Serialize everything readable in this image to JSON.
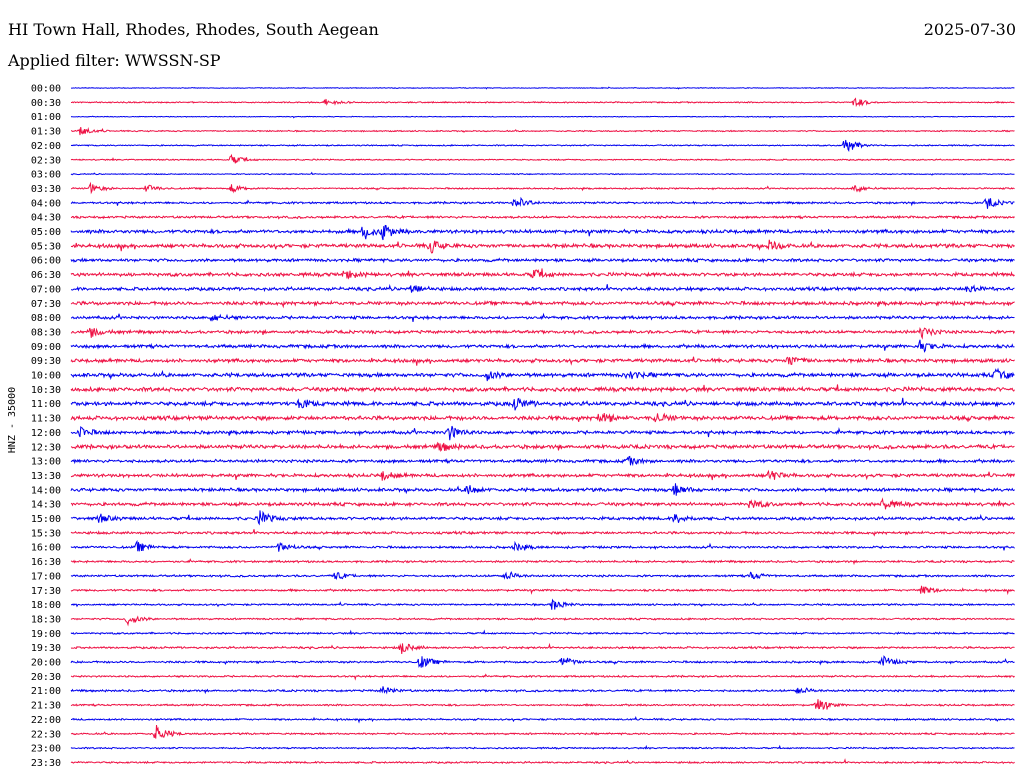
{
  "header": {
    "station": "HI Town Hall, Rhodes, Rhodes, South Aegean",
    "date": "2025-07-30",
    "filter": "Applied filter: WWSSN-SP"
  },
  "chart_data": {
    "type": "line",
    "ylabel": "HNZ - 35000",
    "row_labels": [
      "00:00",
      "00:30",
      "01:00",
      "01:30",
      "02:00",
      "02:30",
      "03:00",
      "03:30",
      "04:00",
      "04:30",
      "05:00",
      "05:30",
      "06:00",
      "06:30",
      "07:00",
      "07:30",
      "08:00",
      "08:30",
      "09:00",
      "09:30",
      "10:00",
      "10:30",
      "11:00",
      "11:30",
      "12:00",
      "12:30",
      "13:00",
      "13:30",
      "14:00",
      "14:30",
      "15:00",
      "15:30",
      "16:00",
      "16:30",
      "17:00",
      "17:30",
      "18:00",
      "18:30",
      "19:00",
      "19:30",
      "20:00",
      "20:30",
      "21:00",
      "21:30",
      "22:00",
      "22:30",
      "23:00",
      "23:30"
    ],
    "trace_colors": [
      "#0000ee",
      "#ee1144"
    ],
    "noise_level": [
      0.3,
      0.5,
      0.3,
      0.5,
      0.5,
      0.5,
      0.4,
      0.6,
      0.8,
      0.9,
      1.4,
      1.5,
      1.2,
      1.4,
      1.3,
      1.4,
      1.2,
      1.2,
      1.3,
      1.4,
      1.5,
      1.6,
      1.6,
      1.6,
      1.3,
      1.5,
      1.2,
      1.3,
      1.3,
      1.3,
      1.2,
      1.0,
      0.9,
      0.8,
      0.8,
      0.8,
      0.7,
      0.7,
      0.7,
      0.8,
      0.8,
      0.7,
      0.8,
      0.7,
      0.7,
      0.7,
      0.6,
      0.7
    ],
    "events": [
      {
        "row": 1,
        "x": 0.27,
        "a": 4
      },
      {
        "row": 1,
        "x": 0.83,
        "a": 5
      },
      {
        "row": 3,
        "x": 0.01,
        "a": 5
      },
      {
        "row": 4,
        "x": 0.82,
        "a": 9
      },
      {
        "row": 5,
        "x": 0.17,
        "a": 5
      },
      {
        "row": 7,
        "x": 0.02,
        "a": 5
      },
      {
        "row": 7,
        "x": 0.08,
        "a": 4
      },
      {
        "row": 7,
        "x": 0.17,
        "a": 4
      },
      {
        "row": 7,
        "x": 0.83,
        "a": 4
      },
      {
        "row": 8,
        "x": 0.47,
        "a": 8
      },
      {
        "row": 8,
        "x": 0.97,
        "a": 6
      },
      {
        "row": 10,
        "x": 0.31,
        "a": 8
      },
      {
        "row": 10,
        "x": 0.33,
        "a": 7
      },
      {
        "row": 11,
        "x": 0.38,
        "a": 7
      },
      {
        "row": 11,
        "x": 0.74,
        "a": 5
      },
      {
        "row": 13,
        "x": 0.29,
        "a": 5
      },
      {
        "row": 13,
        "x": 0.49,
        "a": 5
      },
      {
        "row": 14,
        "x": 0.36,
        "a": 5
      },
      {
        "row": 14,
        "x": 0.95,
        "a": 5
      },
      {
        "row": 16,
        "x": 0.15,
        "a": 4
      },
      {
        "row": 17,
        "x": 0.02,
        "a": 5
      },
      {
        "row": 17,
        "x": 0.9,
        "a": 6
      },
      {
        "row": 18,
        "x": 0.9,
        "a": 6
      },
      {
        "row": 19,
        "x": 0.76,
        "a": 5
      },
      {
        "row": 20,
        "x": 0.44,
        "a": 5
      },
      {
        "row": 20,
        "x": 0.59,
        "a": 5
      },
      {
        "row": 20,
        "x": 0.98,
        "a": 6
      },
      {
        "row": 22,
        "x": 0.24,
        "a": 5
      },
      {
        "row": 22,
        "x": 0.47,
        "a": 6
      },
      {
        "row": 23,
        "x": 0.56,
        "a": 6
      },
      {
        "row": 23,
        "x": 0.62,
        "a": 5
      },
      {
        "row": 24,
        "x": 0.01,
        "a": 5
      },
      {
        "row": 24,
        "x": 0.4,
        "a": 8
      },
      {
        "row": 25,
        "x": 0.39,
        "a": 5
      },
      {
        "row": 26,
        "x": 0.59,
        "a": 4
      },
      {
        "row": 27,
        "x": 0.33,
        "a": 5
      },
      {
        "row": 27,
        "x": 0.74,
        "a": 6
      },
      {
        "row": 28,
        "x": 0.42,
        "a": 5
      },
      {
        "row": 28,
        "x": 0.64,
        "a": 6
      },
      {
        "row": 29,
        "x": 0.72,
        "a": 5
      },
      {
        "row": 29,
        "x": 0.86,
        "a": 6
      },
      {
        "row": 30,
        "x": 0.03,
        "a": 4
      },
      {
        "row": 30,
        "x": 0.2,
        "a": 7
      },
      {
        "row": 30,
        "x": 0.64,
        "a": 5
      },
      {
        "row": 32,
        "x": 0.07,
        "a": 5
      },
      {
        "row": 32,
        "x": 0.22,
        "a": 5
      },
      {
        "row": 32,
        "x": 0.47,
        "a": 4
      },
      {
        "row": 34,
        "x": 0.28,
        "a": 4
      },
      {
        "row": 34,
        "x": 0.46,
        "a": 5
      },
      {
        "row": 34,
        "x": 0.72,
        "a": 4
      },
      {
        "row": 35,
        "x": 0.9,
        "a": 5
      },
      {
        "row": 36,
        "x": 0.51,
        "a": 6
      },
      {
        "row": 37,
        "x": 0.06,
        "a": 6
      },
      {
        "row": 39,
        "x": 0.35,
        "a": 6
      },
      {
        "row": 40,
        "x": 0.37,
        "a": 7
      },
      {
        "row": 40,
        "x": 0.52,
        "a": 6
      },
      {
        "row": 40,
        "x": 0.86,
        "a": 6
      },
      {
        "row": 42,
        "x": 0.33,
        "a": 4
      },
      {
        "row": 42,
        "x": 0.77,
        "a": 4
      },
      {
        "row": 43,
        "x": 0.79,
        "a": 7
      },
      {
        "row": 45,
        "x": 0.09,
        "a": 9
      }
    ]
  }
}
